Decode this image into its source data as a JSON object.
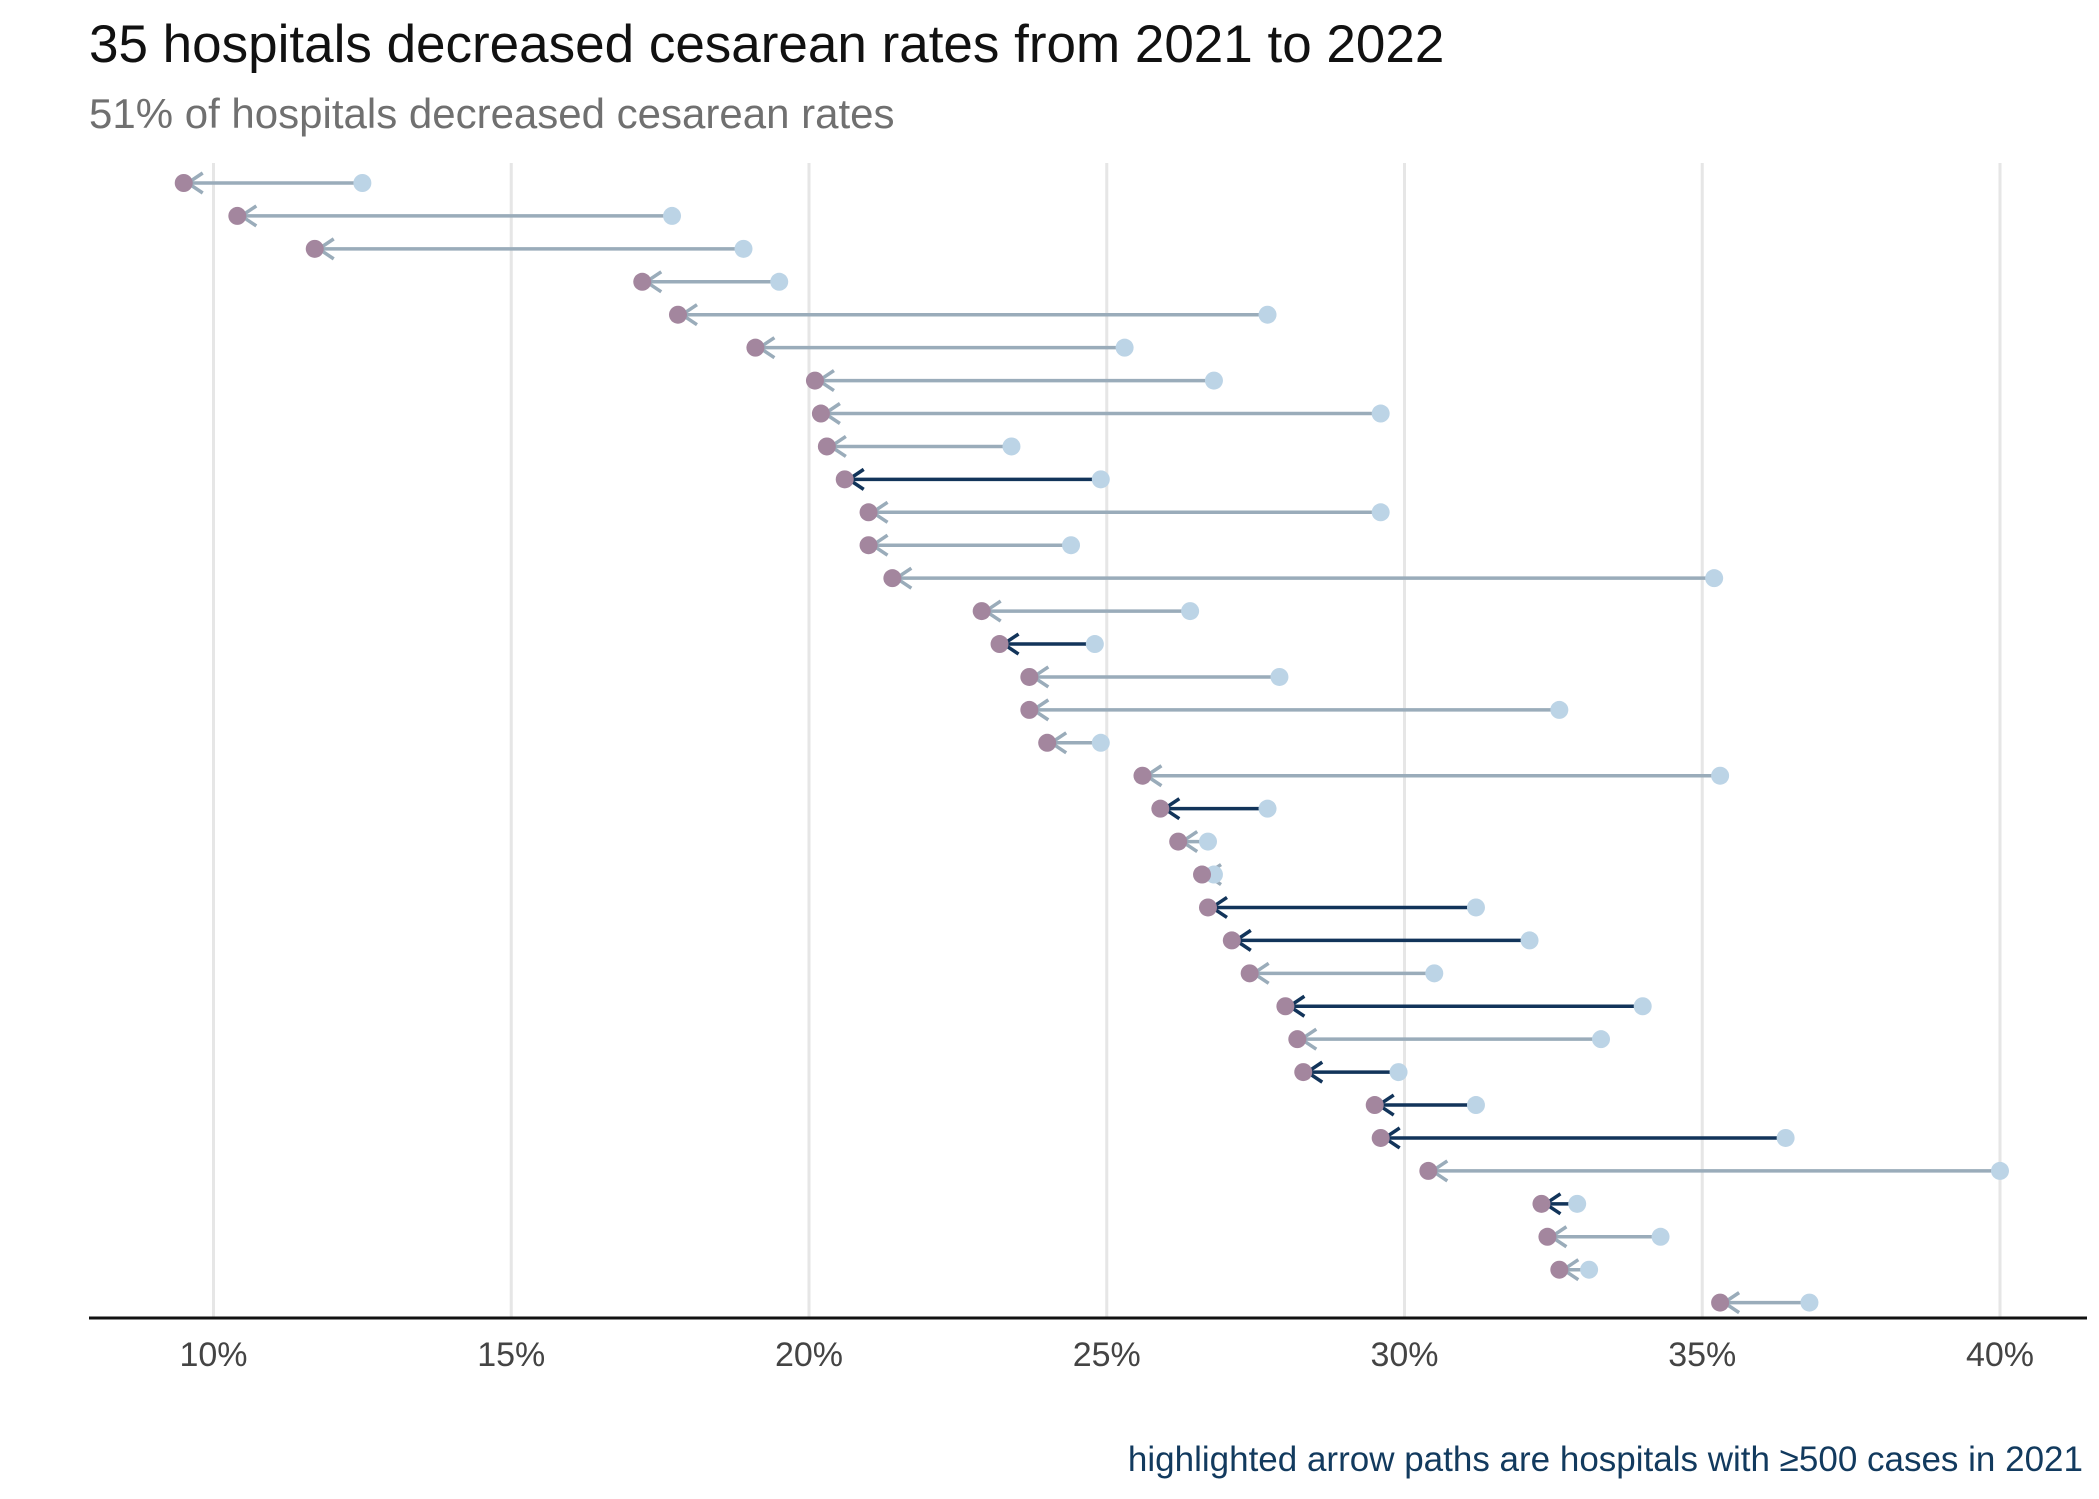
{
  "chart_data": {
    "type": "dumbbell-arrow",
    "title": "35 hospitals decreased cesarean rates from 2021 to 2022",
    "subtitle": "51% of hospitals decreased cesarean rates",
    "caption": "highlighted arrow paths are hospitals with ≥500 cases in 2021",
    "x_ticks": [
      "10%",
      "15%",
      "20%",
      "25%",
      "30%",
      "35%",
      "40%"
    ],
    "x_tick_values": [
      10,
      15,
      20,
      25,
      30,
      35,
      40
    ],
    "xlim": [
      7.9,
      41.5
    ],
    "colors": {
      "start_point": "#bcd4e6",
      "end_point": "#a3869e",
      "arrow": "#9aacba",
      "arrow_highlight": "#12345a",
      "grid": "#e6e6e6",
      "axis": "#111111"
    },
    "hospitals": [
      {
        "start": 12.5,
        "end": 9.5,
        "highlight": false
      },
      {
        "start": 17.7,
        "end": 10.4,
        "highlight": false
      },
      {
        "start": 18.9,
        "end": 11.7,
        "highlight": false
      },
      {
        "start": 19.5,
        "end": 17.2,
        "highlight": false
      },
      {
        "start": 27.7,
        "end": 17.8,
        "highlight": false
      },
      {
        "start": 25.3,
        "end": 19.1,
        "highlight": false
      },
      {
        "start": 26.8,
        "end": 20.1,
        "highlight": false
      },
      {
        "start": 29.6,
        "end": 20.2,
        "highlight": false
      },
      {
        "start": 23.4,
        "end": 20.3,
        "highlight": false
      },
      {
        "start": 24.9,
        "end": 20.6,
        "highlight": true
      },
      {
        "start": 29.6,
        "end": 21.0,
        "highlight": false
      },
      {
        "start": 24.4,
        "end": 21.0,
        "highlight": false
      },
      {
        "start": 35.2,
        "end": 21.4,
        "highlight": false
      },
      {
        "start": 26.4,
        "end": 22.9,
        "highlight": false
      },
      {
        "start": 24.8,
        "end": 23.2,
        "highlight": true
      },
      {
        "start": 27.9,
        "end": 23.7,
        "highlight": false
      },
      {
        "start": 32.6,
        "end": 23.7,
        "highlight": false
      },
      {
        "start": 24.9,
        "end": 24.0,
        "highlight": false
      },
      {
        "start": 35.3,
        "end": 25.6,
        "highlight": false
      },
      {
        "start": 27.7,
        "end": 25.9,
        "highlight": true
      },
      {
        "start": 26.7,
        "end": 26.2,
        "highlight": false
      },
      {
        "start": 26.8,
        "end": 26.6,
        "highlight": false
      },
      {
        "start": 31.2,
        "end": 26.7,
        "highlight": true
      },
      {
        "start": 32.1,
        "end": 27.1,
        "highlight": true
      },
      {
        "start": 30.5,
        "end": 27.4,
        "highlight": false
      },
      {
        "start": 34.0,
        "end": 28.0,
        "highlight": true
      },
      {
        "start": 33.3,
        "end": 28.2,
        "highlight": false
      },
      {
        "start": 29.9,
        "end": 28.3,
        "highlight": true
      },
      {
        "start": 31.2,
        "end": 29.5,
        "highlight": true
      },
      {
        "start": 36.4,
        "end": 29.6,
        "highlight": true
      },
      {
        "start": 40.0,
        "end": 30.4,
        "highlight": false
      },
      {
        "start": 32.9,
        "end": 32.3,
        "highlight": true
      },
      {
        "start": 34.3,
        "end": 32.4,
        "highlight": false
      },
      {
        "start": 33.1,
        "end": 32.6,
        "highlight": false
      },
      {
        "start": 36.8,
        "end": 35.3,
        "highlight": false
      }
    ]
  }
}
